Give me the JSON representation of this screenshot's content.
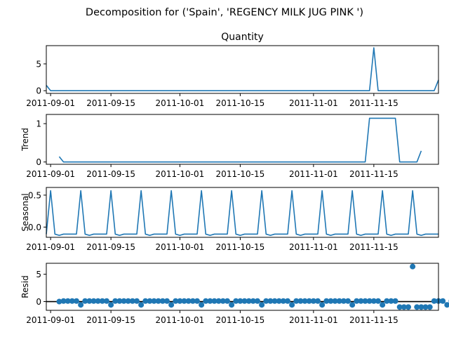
{
  "figure": {
    "suptitle": "Decomposition for ('Spain', 'REGENCY MILK JUG PINK ')"
  },
  "colors": {
    "series": "#1f77b4",
    "zero_line": "#000000",
    "axes": "#000000"
  },
  "chart_data": [
    {
      "type": "line",
      "title": "Quantity",
      "ylabel": "",
      "xlabel": "",
      "x_start": "2011-08-31",
      "x_end": "2011-11-30",
      "xlim": [
        "2011-08-31",
        "2011-11-30"
      ],
      "ylim": [
        -0.5,
        8.4
      ],
      "yticks": [
        0,
        5
      ],
      "xticks": [
        "2011-09-01",
        "2011-09-15",
        "2011-10-01",
        "2011-10-15",
        "2011-11-01",
        "2011-11-15"
      ],
      "points": [
        [
          "2011-08-31",
          1
        ],
        [
          "2011-09-01",
          0
        ],
        [
          "2011-11-14",
          0
        ],
        [
          "2011-11-15",
          8
        ],
        [
          "2011-11-16",
          0
        ],
        [
          "2011-11-29",
          0
        ],
        [
          "2011-11-30",
          2
        ]
      ],
      "grid": false
    },
    {
      "type": "line",
      "title": "",
      "ylabel": "Trend",
      "xlabel": "",
      "xlim": [
        "2011-08-31",
        "2011-11-30"
      ],
      "ylim": [
        -0.06,
        1.24
      ],
      "yticks": [
        0,
        1
      ],
      "xticks": [
        "2011-09-01",
        "2011-09-15",
        "2011-10-01",
        "2011-10-15",
        "2011-11-01",
        "2011-11-15"
      ],
      "points": [
        [
          "2011-09-03",
          0.14
        ],
        [
          "2011-09-04",
          0
        ],
        [
          "2011-11-13",
          0
        ],
        [
          "2011-11-14",
          1.14
        ],
        [
          "2011-11-20",
          1.14
        ],
        [
          "2011-11-21",
          0
        ],
        [
          "2011-11-25",
          0
        ],
        [
          "2011-11-26",
          0.29
        ]
      ],
      "grid": false
    },
    {
      "type": "line",
      "title": "",
      "ylabel": "Seasonal",
      "xlabel": "",
      "xlim": [
        "2011-08-31",
        "2011-11-30"
      ],
      "ylim": [
        -0.16,
        0.62
      ],
      "yticks": [
        0,
        0.5
      ],
      "ytick_labels": [
        "0.0",
        "0.5"
      ],
      "xticks": [
        "2011-09-01",
        "2011-09-15",
        "2011-10-01",
        "2011-10-15",
        "2011-11-01",
        "2011-11-15"
      ],
      "pattern": [
        0.57,
        -0.11,
        -0.13,
        -0.11,
        -0.11,
        -0.11,
        -0.11
      ],
      "pattern_start": "2011-09-01",
      "series_start": "2011-08-31",
      "series_end": "2011-11-30",
      "grid": false
    },
    {
      "type": "scatter",
      "title": "",
      "ylabel": "Resid",
      "xlabel": "",
      "xlim": [
        "2011-08-31",
        "2011-11-30"
      ],
      "ylim": [
        -1.6,
        7.0
      ],
      "yticks": [
        0,
        5
      ],
      "xticks": [
        "2011-09-01",
        "2011-09-15",
        "2011-10-01",
        "2011-10-15",
        "2011-11-01",
        "2011-11-15"
      ],
      "zero_line": true,
      "x_start": "2011-09-03",
      "values": [
        0,
        0.1,
        0.1,
        0.1,
        0.1,
        -0.6,
        0.1,
        0.1,
        0.1,
        0.1,
        0.1,
        0.1,
        -0.6,
        0.1,
        0.1,
        0.1,
        0.1,
        0.1,
        0.1,
        -0.6,
        0.1,
        0.1,
        0.1,
        0.1,
        0.1,
        0.1,
        -0.6,
        0.1,
        0.1,
        0.1,
        0.1,
        0.1,
        0.1,
        -0.6,
        0.1,
        0.1,
        0.1,
        0.1,
        0.1,
        0.1,
        -0.6,
        0.1,
        0.1,
        0.1,
        0.1,
        0.1,
        0.1,
        -0.6,
        0.1,
        0.1,
        0.1,
        0.1,
        0.1,
        0.1,
        -0.6,
        0.1,
        0.1,
        0.1,
        0.1,
        0.1,
        0.1,
        -0.6,
        0.1,
        0.1,
        0.1,
        0.1,
        0.1,
        0.1,
        -0.6,
        0.1,
        0.1,
        0.1,
        0.1,
        0.1,
        0.1,
        -0.6,
        0.1,
        0.1,
        0.1,
        -1.0,
        -1.0,
        -1.0,
        6.4,
        -1.0,
        -1.0,
        -1.0,
        -1.0,
        0.1,
        0.1,
        0.1,
        -0.6,
        0.1,
        0.1,
        -0.3
      ],
      "grid": false
    }
  ]
}
